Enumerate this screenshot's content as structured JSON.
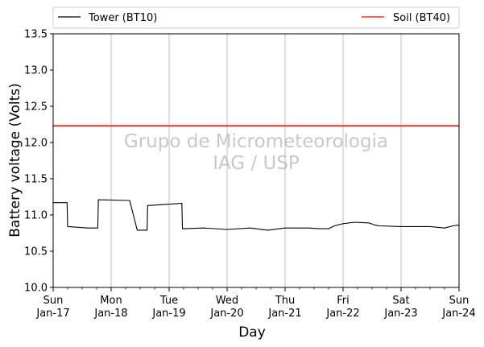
{
  "chart_data": {
    "type": "line",
    "xlabel": "Day",
    "ylabel": "Battery voltage (Volts)",
    "xlim": [
      0,
      7
    ],
    "ylim": [
      10.0,
      13.5
    ],
    "yticks": [
      10.0,
      10.5,
      11.0,
      11.5,
      12.0,
      12.5,
      13.0,
      13.5
    ],
    "ytick_labels": [
      "10.0",
      "10.5",
      "11.0",
      "11.5",
      "12.0",
      "12.5",
      "13.0",
      "13.5"
    ],
    "xticks": [
      {
        "x": 0,
        "day": "Sun",
        "date": "Jan-17"
      },
      {
        "x": 1,
        "day": "Mon",
        "date": "Jan-18"
      },
      {
        "x": 2,
        "day": "Tue",
        "date": "Jan-19"
      },
      {
        "x": 3,
        "day": "Wed",
        "date": "Jan-20"
      },
      {
        "x": 4,
        "day": "Thu",
        "date": "Jan-21"
      },
      {
        "x": 5,
        "day": "Fri",
        "date": "Jan-22"
      },
      {
        "x": 6,
        "day": "Sat",
        "date": "Jan-23"
      },
      {
        "x": 7,
        "day": "Sun",
        "date": "Jan-24"
      }
    ],
    "grid": "vertical at major ticks",
    "legend_position": "top, above plot",
    "watermark": [
      "Grupo de Micrometeorologia",
      "IAG / USP"
    ],
    "series": [
      {
        "name": "Tower (BT10)",
        "color": "#000000",
        "x": [
          0.0,
          0.24,
          0.25,
          0.6,
          0.62,
          0.77,
          0.78,
          1.3,
          1.32,
          1.45,
          1.46,
          1.62,
          1.63,
          2.22,
          2.23,
          2.6,
          3.0,
          3.4,
          3.7,
          4.0,
          4.4,
          4.6,
          4.75,
          4.85,
          5.0,
          5.2,
          5.45,
          5.55,
          5.62,
          6.0,
          6.5,
          6.75,
          6.9,
          7.0
        ],
        "y": [
          11.17,
          11.17,
          10.84,
          10.82,
          10.82,
          10.82,
          11.21,
          11.2,
          11.2,
          10.79,
          10.79,
          10.79,
          11.13,
          11.16,
          10.81,
          10.82,
          10.8,
          10.82,
          10.79,
          10.82,
          10.82,
          10.81,
          10.81,
          10.85,
          10.88,
          10.9,
          10.89,
          10.86,
          10.85,
          10.84,
          10.84,
          10.82,
          10.85,
          10.86
        ]
      },
      {
        "name": "Soil (BT40)",
        "color": "#ff0000",
        "x": [
          0.0,
          7.0
        ],
        "y": [
          12.23,
          12.23
        ]
      }
    ]
  }
}
